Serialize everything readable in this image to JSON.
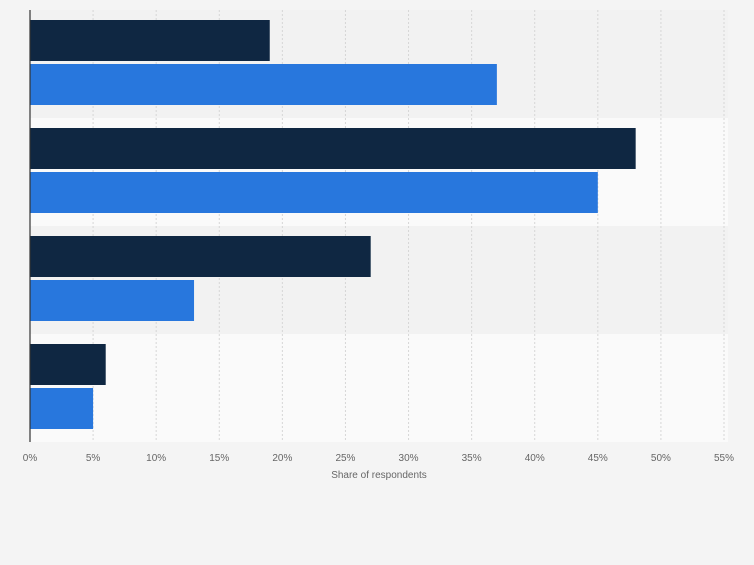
{
  "chart_data": {
    "type": "bar",
    "orientation": "horizontal",
    "categories": [
      "",
      "",
      "",
      ""
    ],
    "series": [
      {
        "name": "",
        "color": "#0f2742",
        "values": [
          19,
          48,
          27,
          6
        ]
      },
      {
        "name": "",
        "color": "#2877dd",
        "values": [
          37,
          45,
          13,
          5
        ]
      }
    ],
    "xlabel": "Share of respondents",
    "ylabel": "",
    "xlim": [
      0,
      55
    ],
    "xticks": [
      0,
      5,
      10,
      15,
      20,
      25,
      30,
      35,
      40,
      45,
      50,
      55
    ],
    "xtick_labels": [
      "0%",
      "5%",
      "10%",
      "15%",
      "20%",
      "25%",
      "30%",
      "35%",
      "40%",
      "45%",
      "50%",
      "55%"
    ],
    "grid": true
  },
  "colors": {
    "background": "#f4f4f4",
    "band_even": "#f2f2f2",
    "band_odd": "#fafafa",
    "grid": "#d6d6d6",
    "axis": "#333333",
    "tick_text": "#666666"
  }
}
